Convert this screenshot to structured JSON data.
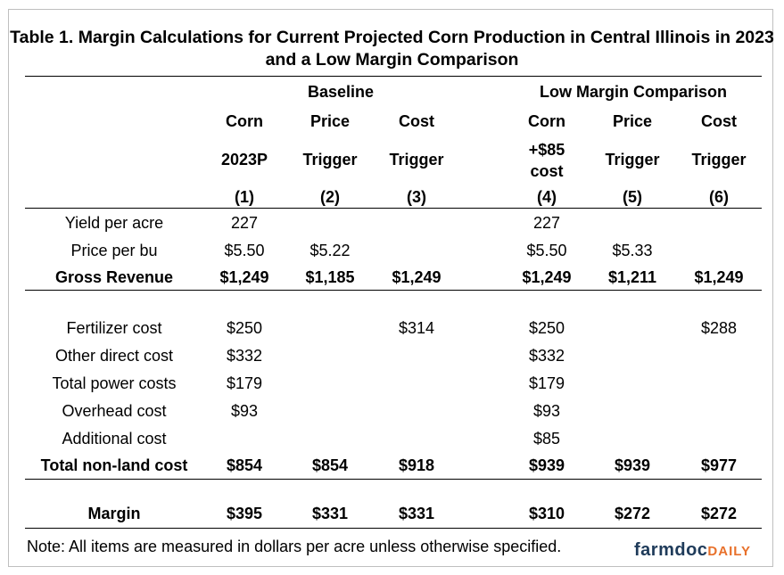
{
  "title": "Table 1. Margin Calculations for Current Projected Corn Production in Central Illinois in 2023 and a Low Margin Comparison",
  "groups": {
    "baseline": "Baseline",
    "low_margin": "Low Margin Comparison"
  },
  "columns": [
    {
      "h1": "Corn",
      "h2": "2023P",
      "num": "(1)"
    },
    {
      "h1": "Price",
      "h2": "Trigger",
      "num": "(2)"
    },
    {
      "h1": "Cost",
      "h2": "Trigger",
      "num": "(3)"
    },
    {
      "h1": "Corn",
      "h2a": "+$85",
      "h2b": "cost",
      "num": "(4)"
    },
    {
      "h1": "Price",
      "h2": "Trigger",
      "num": "(5)"
    },
    {
      "h1": "Cost",
      "h2": "Trigger",
      "num": "(6)"
    }
  ],
  "rows": [
    {
      "label": "Yield per acre",
      "bold": false,
      "values": [
        "227",
        "",
        "",
        "227",
        "",
        ""
      ]
    },
    {
      "label": "Price per bu",
      "bold": false,
      "values": [
        "$5.50",
        "$5.22",
        "",
        "$5.50",
        "$5.33",
        ""
      ]
    },
    {
      "label": "Gross Revenue",
      "bold": true,
      "values": [
        "$1,249",
        "$1,185",
        "$1,249",
        "$1,249",
        "$1,211",
        "$1,249"
      ]
    },
    {
      "label": "Fertilizer cost",
      "bold": false,
      "values": [
        "$250",
        "",
        "$314",
        "$250",
        "",
        "$288"
      ]
    },
    {
      "label": "Other direct cost",
      "bold": false,
      "values": [
        "$332",
        "",
        "",
        "$332",
        "",
        ""
      ]
    },
    {
      "label": "Total power costs",
      "bold": false,
      "values": [
        "$179",
        "",
        "",
        "$179",
        "",
        ""
      ]
    },
    {
      "label": "Overhead cost",
      "bold": false,
      "values": [
        "$93",
        "",
        "",
        "$93",
        "",
        ""
      ]
    },
    {
      "label": "Additional cost",
      "bold": false,
      "values": [
        "",
        "",
        "",
        "$85",
        "",
        ""
      ]
    },
    {
      "label": "Total non-land cost",
      "bold": true,
      "values": [
        "$854",
        "$854",
        "$918",
        "$939",
        "$939",
        "$977"
      ]
    },
    {
      "label": "Margin",
      "bold": true,
      "values": [
        "$395",
        "$331",
        "$331",
        "$310",
        "$272",
        "$272"
      ]
    }
  ],
  "note": "Note: All items are measured in dollars per acre unless otherwise specified.",
  "logo": {
    "part1": "farmdoc",
    "part2": "DAILY"
  }
}
